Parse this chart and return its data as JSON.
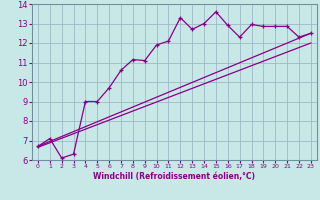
{
  "bg_color": "#c8e8e8",
  "grid_color": "#a0b8c8",
  "line_color": "#880088",
  "spine_color": "#7090a0",
  "xlabel": "Windchill (Refroidissement éolien,°C)",
  "xlim": [
    -0.5,
    23.5
  ],
  "ylim": [
    6,
    14
  ],
  "xticks": [
    0,
    1,
    2,
    3,
    4,
    5,
    6,
    7,
    8,
    9,
    10,
    11,
    12,
    13,
    14,
    15,
    16,
    17,
    18,
    19,
    20,
    21,
    22,
    23
  ],
  "yticks": [
    6,
    7,
    8,
    9,
    10,
    11,
    12,
    13,
    14
  ],
  "line1_x": [
    0,
    1,
    2,
    3,
    4,
    5,
    6,
    7,
    8,
    9,
    10,
    11,
    12,
    13,
    14,
    15,
    16,
    17,
    18,
    19,
    20,
    21,
    22,
    23
  ],
  "line1_y": [
    6.7,
    7.1,
    6.1,
    6.3,
    9.0,
    9.0,
    9.7,
    10.6,
    11.15,
    11.1,
    11.9,
    12.1,
    13.3,
    12.7,
    13.0,
    13.6,
    12.9,
    12.3,
    12.95,
    12.85,
    12.85,
    12.85,
    12.3,
    12.5
  ],
  "line2_x": [
    0,
    23
  ],
  "line2_y": [
    6.7,
    12.5
  ],
  "line3_x": [
    0,
    23
  ],
  "line3_y": [
    6.65,
    12.0
  ],
  "xlabel_fontsize": 5.5,
  "ylabel_fontsize": 6,
  "xtick_fontsize": 4.5,
  "ytick_fontsize": 6
}
